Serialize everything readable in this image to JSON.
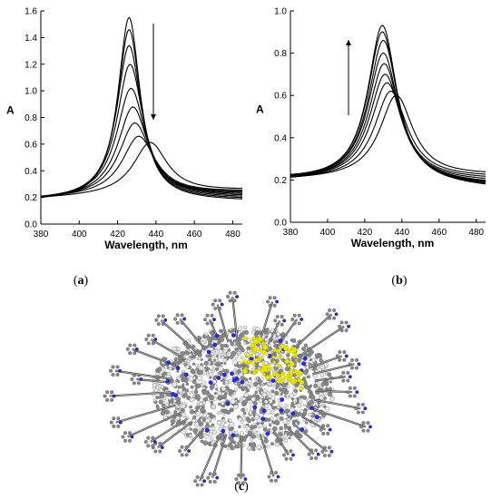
{
  "chart_data": [
    {
      "type": "line",
      "panel_label": "a",
      "xlabel": "Wavelength, nm",
      "ylabel": "A",
      "xlim": [
        380,
        485
      ],
      "ylim": [
        0,
        1.6
      ],
      "xticks": [
        380,
        400,
        420,
        440,
        460,
        480
      ],
      "yticks": [
        0.0,
        0.2,
        0.4,
        0.6,
        0.8,
        1.0,
        1.2,
        1.4,
        1.6
      ],
      "ytick_labels": [
        "0.0",
        "0.2",
        "0.4",
        "0.6",
        "0.8",
        "1.0",
        "1.2",
        "1.4",
        "1.6"
      ],
      "grid": false,
      "annotation": "downward arrow: absorbance at peak decreases",
      "series": [
        {
          "peak_x": 426,
          "peak_y": 1.55,
          "tail_y": 0.17,
          "base_y": 0.17
        },
        {
          "peak_x": 426,
          "peak_y": 1.46,
          "tail_y": 0.18,
          "base_y": 0.17
        },
        {
          "peak_x": 426,
          "peak_y": 1.34,
          "tail_y": 0.19,
          "base_y": 0.175
        },
        {
          "peak_x": 426.5,
          "peak_y": 1.2,
          "tail_y": 0.2,
          "base_y": 0.175
        },
        {
          "peak_x": 427,
          "peak_y": 1.02,
          "tail_y": 0.21,
          "base_y": 0.18
        },
        {
          "peak_x": 428,
          "peak_y": 0.88,
          "tail_y": 0.22,
          "base_y": 0.18
        },
        {
          "peak_x": 429,
          "peak_y": 0.76,
          "tail_y": 0.23,
          "base_y": 0.185
        },
        {
          "peak_x": 431,
          "peak_y": 0.66,
          "tail_y": 0.24,
          "base_y": 0.19
        },
        {
          "peak_x": 437,
          "peak_y": 0.61,
          "tail_y": 0.25,
          "base_y": 0.19
        }
      ]
    },
    {
      "type": "line",
      "panel_label": "b",
      "xlabel": "Wavelength, nm",
      "ylabel": "A",
      "xlim": [
        380,
        485
      ],
      "ylim": [
        0,
        1.0
      ],
      "xticks": [
        380,
        400,
        420,
        440,
        460,
        480
      ],
      "yticks": [
        0.0,
        0.2,
        0.4,
        0.6,
        0.8,
        1.0
      ],
      "ytick_labels": [
        "0.0",
        "0.2",
        "0.4",
        "0.6",
        "0.8",
        "1.0"
      ],
      "grid": false,
      "annotation": "upward arrow: absorbance at peak increases",
      "series": [
        {
          "peak_x": 437,
          "peak_y": 0.6,
          "tail_y": 0.22,
          "base_y": 0.2
        },
        {
          "peak_x": 434,
          "peak_y": 0.62,
          "tail_y": 0.21,
          "base_y": 0.2
        },
        {
          "peak_x": 432,
          "peak_y": 0.66,
          "tail_y": 0.2,
          "base_y": 0.2
        },
        {
          "peak_x": 431,
          "peak_y": 0.7,
          "tail_y": 0.19,
          "base_y": 0.2
        },
        {
          "peak_x": 430.5,
          "peak_y": 0.75,
          "tail_y": 0.18,
          "base_y": 0.2
        },
        {
          "peak_x": 430,
          "peak_y": 0.8,
          "tail_y": 0.175,
          "base_y": 0.2
        },
        {
          "peak_x": 430,
          "peak_y": 0.86,
          "tail_y": 0.17,
          "base_y": 0.2
        },
        {
          "peak_x": 429.5,
          "peak_y": 0.9,
          "tail_y": 0.165,
          "base_y": 0.2
        },
        {
          "peak_x": 429.5,
          "peak_y": 0.93,
          "tail_y": 0.16,
          "base_y": 0.2
        }
      ]
    }
  ],
  "panel_c": {
    "panel_label": "c",
    "description_icon": "molecular-structure-image",
    "colors": {
      "atoms_gray": "#8a8a8a",
      "atoms_white": "#e8e8e8",
      "nitrogen": "#2a2ad0",
      "highlight": "#e6e600"
    }
  }
}
